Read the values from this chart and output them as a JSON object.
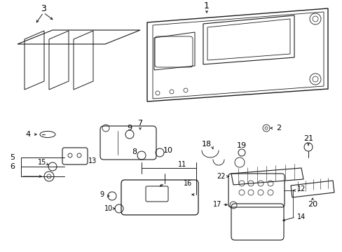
{
  "bg_color": "#ffffff",
  "line_color": "#1a1a1a",
  "parts_label_size": 7,
  "lw": 0.7
}
